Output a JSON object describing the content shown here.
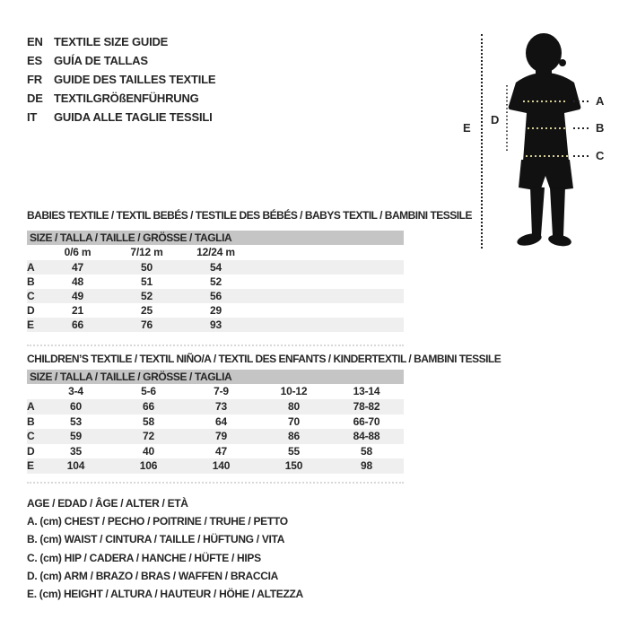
{
  "header": {
    "languages": [
      {
        "code": "EN",
        "label": "TEXTILE SIZE GUIDE"
      },
      {
        "code": "ES",
        "label": "GUÍA DE TALLAS"
      },
      {
        "code": "FR",
        "label": "GUIDE DES TAILLES TEXTILE"
      },
      {
        "code": "DE",
        "label": "TEXTILGRÖßENFÜHRUNG"
      },
      {
        "code": "IT",
        "label": "GUIDA ALLE TAGLIE TESSILI"
      }
    ]
  },
  "figure": {
    "icon": "child-silhouette",
    "measure_labels": [
      "A",
      "B",
      "C",
      "D",
      "E"
    ]
  },
  "babies_table": {
    "title": "BABIES TEXTILE / TEXTIL BEBÉS / TESTILE DES BÉBÉS / BABYS TEXTIL / BAMBINI TESSILE",
    "size_header": "SIZE / TALLA / TAILLE / GRÖSSE / TAGLIA",
    "columns": [
      "0/6 m",
      "7/12 m",
      "12/24 m"
    ],
    "rows": [
      {
        "label": "A",
        "values": [
          "47",
          "50",
          "54"
        ]
      },
      {
        "label": "B",
        "values": [
          "48",
          "51",
          "52"
        ]
      },
      {
        "label": "C",
        "values": [
          "49",
          "52",
          "56"
        ]
      },
      {
        "label": "D",
        "values": [
          "21",
          "25",
          "29"
        ]
      },
      {
        "label": "E",
        "values": [
          "66",
          "76",
          "93"
        ]
      }
    ]
  },
  "children_table": {
    "title": "CHILDREN’S TEXTILE / TEXTIL NIÑO/A / TEXTIL DES ENFANTS / KINDERTEXTIL / BAMBINI TESSILE",
    "size_header": "SIZE / TALLA / TAILLE / GRÖSSE / TAGLIA",
    "columns": [
      "3-4",
      "5-6",
      "7-9",
      "10-12",
      "13-14"
    ],
    "rows": [
      {
        "label": "A",
        "values": [
          "60",
          "66",
          "73",
          "80",
          "78-82"
        ]
      },
      {
        "label": "B",
        "values": [
          "53",
          "58",
          "64",
          "70",
          "66-70"
        ]
      },
      {
        "label": "C",
        "values": [
          "59",
          "72",
          "79",
          "86",
          "84-88"
        ]
      },
      {
        "label": "D",
        "values": [
          "35",
          "40",
          "47",
          "55",
          "58"
        ]
      },
      {
        "label": "E",
        "values": [
          "104",
          "106",
          "140",
          "150",
          "98"
        ]
      }
    ]
  },
  "legend": {
    "lines": [
      "AGE / EDAD / ÂGE / ALTER / ETÀ",
      "A. (cm) CHEST / PECHO / POITRINE / TRUHE / PETTO",
      "B. (cm) WAIST / CINTURA / TAILLE / HÜFTUNG / VITA",
      "C. (cm) HIP / CADERA / HANCHE / HÜFTE / HIPS",
      "D. (cm) ARM / BRAZO / BRAS / WAFFEN / BRACCIA",
      "E. (cm) HEIGHT / ALTURA / HAUTEUR / HÖHE / ALTEZZA"
    ]
  },
  "colors": {
    "text": "#262626",
    "size_bar_bg": "#c5c5c5",
    "stripe_bg": "#efefef",
    "separator": "#d8d8d8",
    "dots_on_body": "#d5cd96",
    "silhouette": "#111111"
  }
}
